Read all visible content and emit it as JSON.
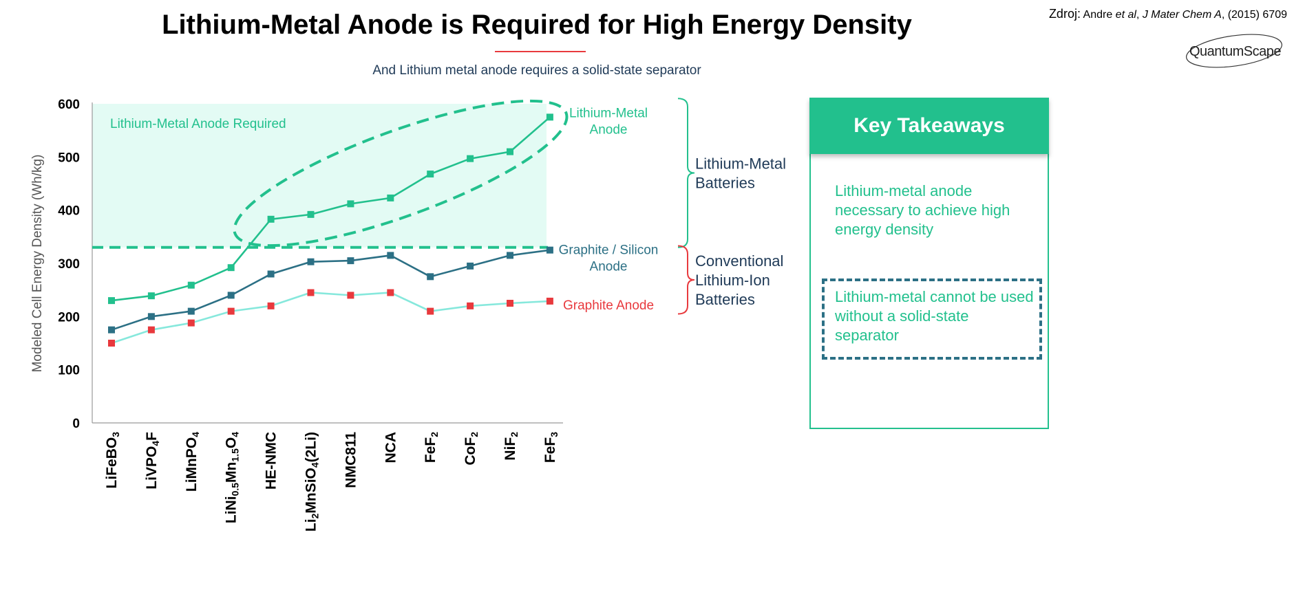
{
  "title": "Lithium-Metal Anode is Required for High Energy Density",
  "subtitle": "And Lithium metal anode requires a solid-state separator",
  "source": {
    "label": "Zdroj:",
    "authors": "Andre",
    "etal": "et al",
    "journal": "J Mater Chem A",
    "year_page": ", (2015) 6709"
  },
  "logo": {
    "text": "QuantumScape"
  },
  "colors": {
    "green": "#22c08d",
    "green_fill": "#e3fbf4",
    "teal": "#2c7085",
    "light_teal": "#86e8dc",
    "red": "#e8393d",
    "navy": "#1f3a57"
  },
  "chart_data": {
    "type": "line",
    "categories": [
      {
        "parts": [
          [
            "LiFeBO",
            ""
          ],
          [
            "3",
            "sub"
          ]
        ]
      },
      {
        "parts": [
          [
            "LiVPO",
            ""
          ],
          [
            "4",
            "sub"
          ],
          [
            "F",
            ""
          ]
        ]
      },
      {
        "parts": [
          [
            "LiMnPO",
            ""
          ],
          [
            "4",
            "sub"
          ]
        ]
      },
      {
        "parts": [
          [
            "LiNi",
            ""
          ],
          [
            "0.5",
            "sub"
          ],
          [
            "Mn",
            ""
          ],
          [
            "1.5",
            "sub"
          ],
          [
            "O",
            ""
          ],
          [
            "4",
            "sub"
          ]
        ]
      },
      {
        "parts": [
          [
            "HE-NMC",
            ""
          ]
        ]
      },
      {
        "parts": [
          [
            "Li",
            ""
          ],
          [
            "2",
            "sub"
          ],
          [
            "MnSiO",
            ""
          ],
          [
            "4",
            "sub"
          ],
          [
            "(2Li)",
            ""
          ]
        ]
      },
      {
        "parts": [
          [
            "NMC811",
            ""
          ]
        ]
      },
      {
        "parts": [
          [
            "NCA",
            ""
          ]
        ]
      },
      {
        "parts": [
          [
            "FeF",
            ""
          ],
          [
            "2",
            "sub"
          ]
        ]
      },
      {
        "parts": [
          [
            "CoF",
            ""
          ],
          [
            "2",
            "sub"
          ]
        ]
      },
      {
        "parts": [
          [
            "NiF",
            ""
          ],
          [
            "2",
            "sub"
          ]
        ]
      },
      {
        "parts": [
          [
            "FeF",
            ""
          ],
          [
            "3",
            "sub"
          ]
        ]
      }
    ],
    "series": [
      {
        "name": "Lithium-Metal Anode",
        "color": "#22c08d",
        "line_color": "#22c08d",
        "marker_color": "#22c08d",
        "values": [
          230,
          239,
          259,
          292,
          383,
          392,
          412,
          423,
          468,
          497,
          510,
          575
        ]
      },
      {
        "name": "Graphite / Silicon Anode",
        "color": "#2c7085",
        "line_color": "#2c7085",
        "marker_color": "#2c7085",
        "values": [
          175,
          200,
          210,
          240,
          280,
          303,
          305,
          315,
          275,
          295,
          315,
          325
        ]
      },
      {
        "name": "Graphite Anode",
        "color": "#e8393d",
        "line_color": "#86e8dc",
        "marker_color": "#e8393d",
        "values": [
          150,
          175,
          188,
          210,
          220,
          245,
          240,
          245,
          210,
          220,
          225,
          229
        ]
      }
    ],
    "series_labels": [
      {
        "lines": [
          "Lithium-Metal",
          "Anode"
        ],
        "color": "#22c08d"
      },
      {
        "lines": [
          "Graphite / Silicon",
          "Anode"
        ],
        "color": "#2c7085"
      },
      {
        "lines": [
          "Graphite Anode"
        ],
        "color": "#e8393d"
      }
    ],
    "ylabel": "Modeled Cell Energy Density (Wh/kg)",
    "ylim": [
      0,
      600
    ],
    "yticks": [
      0,
      100,
      200,
      300,
      400,
      500,
      600
    ],
    "threshold": 330,
    "region_label": "Lithium-Metal Anode Required",
    "groups": [
      {
        "lines": [
          "Lithium-Metal",
          "Batteries"
        ],
        "range": [
          330,
          610
        ],
        "color": "#22c08d"
      },
      {
        "lines": [
          "Conventional",
          "Lithium-Ion",
          "Batteries"
        ],
        "range": [
          205,
          333
        ],
        "color": "#e8393d"
      }
    ],
    "grid": false,
    "legend": "inline-right"
  },
  "takeaways": {
    "header": "Key Takeaways",
    "items": [
      "Lithium-metal anode necessary to achieve high energy density",
      "Lithium-metal cannot be used without a solid-state separator"
    ]
  }
}
